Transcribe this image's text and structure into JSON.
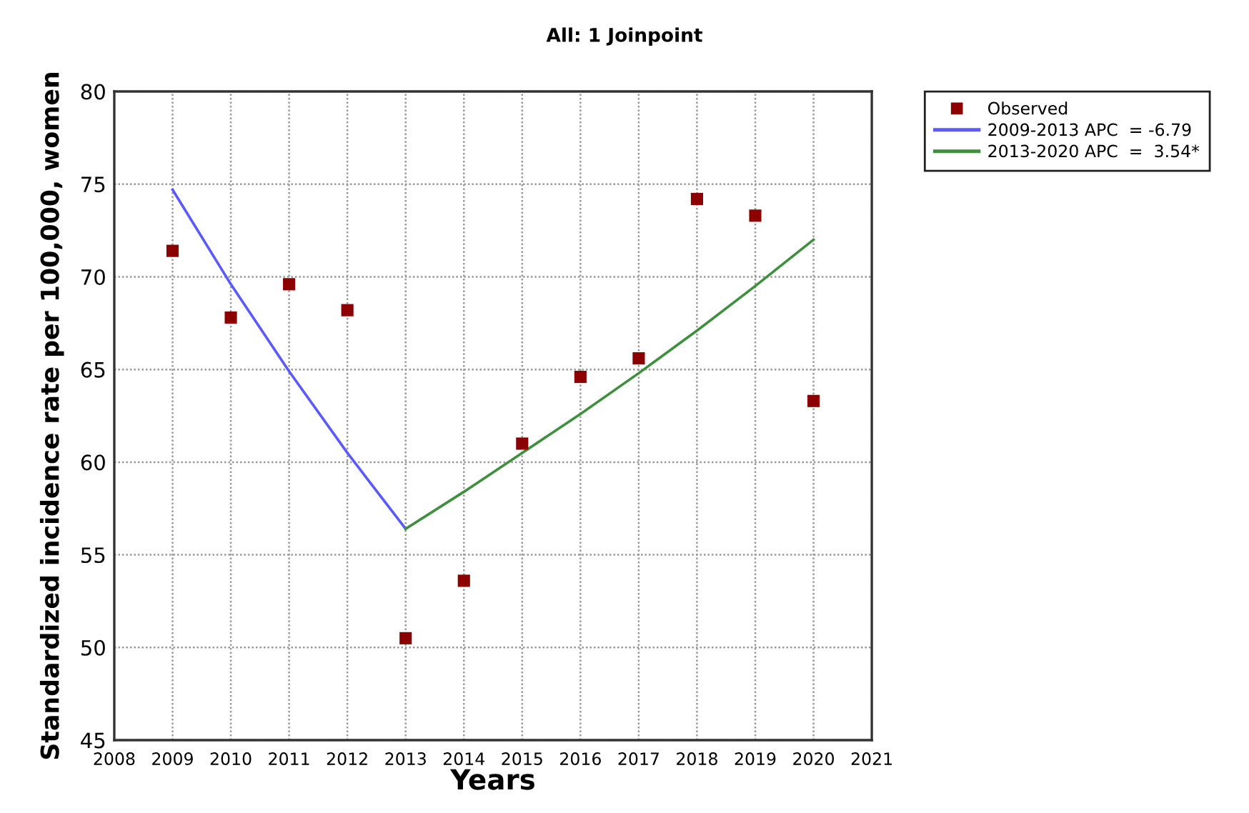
{
  "chart_data": {
    "type": "scatter",
    "title": "All: 1 Joinpoint",
    "xlabel": "Years",
    "ylabel": "Standardized incidence rate per 100,000, women",
    "xlim": [
      2008,
      2021
    ],
    "xticks": [
      2008,
      2009,
      2010,
      2011,
      2012,
      2013,
      2014,
      2015,
      2016,
      2017,
      2018,
      2019,
      2020,
      2021
    ],
    "ylim": [
      45,
      80
    ],
    "yticks": [
      45,
      50,
      55,
      60,
      65,
      70,
      75,
      80
    ],
    "grid": true,
    "legend": "top right",
    "series": [
      {
        "name": "Observed",
        "marker": "square",
        "color": "#8b0000",
        "x": [
          2009,
          2010,
          2011,
          2012,
          2013,
          2014,
          2015,
          2016,
          2017,
          2018,
          2019,
          2020
        ],
        "values": [
          71.4,
          67.8,
          69.6,
          68.2,
          50.5,
          53.6,
          61.0,
          64.6,
          65.6,
          74.2,
          73.3,
          63.3
        ]
      },
      {
        "name": "2009-2013 APC  = -6.79",
        "type": "line",
        "marker": "none",
        "color": "#5a5aff",
        "x": [
          2009,
          2010,
          2011,
          2012,
          2013
        ],
        "values": [
          74.7,
          69.6,
          64.9,
          60.5,
          56.4
        ]
      },
      {
        "name": "2013-2020 APC  =  3.54*",
        "type": "line",
        "marker": "none",
        "color": "#3f8f3f",
        "x": [
          2013,
          2014,
          2015,
          2016,
          2017,
          2018,
          2019,
          2020
        ],
        "values": [
          56.4,
          58.4,
          60.5,
          62.6,
          64.8,
          67.1,
          69.5,
          72.0
        ]
      }
    ]
  }
}
